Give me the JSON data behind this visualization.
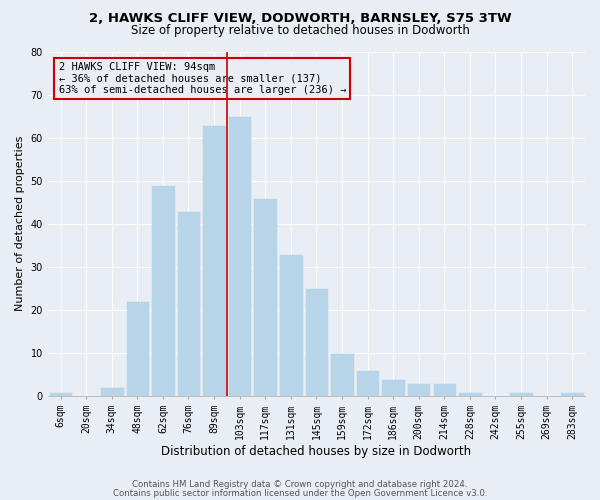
{
  "title_line1": "2, HAWKS CLIFF VIEW, DODWORTH, BARNSLEY, S75 3TW",
  "title_line2": "Size of property relative to detached houses in Dodworth",
  "xlabel": "Distribution of detached houses by size in Dodworth",
  "ylabel": "Number of detached properties",
  "bar_labels": [
    "6sqm",
    "20sqm",
    "34sqm",
    "48sqm",
    "62sqm",
    "76sqm",
    "89sqm",
    "103sqm",
    "117sqm",
    "131sqm",
    "145sqm",
    "159sqm",
    "172sqm",
    "186sqm",
    "200sqm",
    "214sqm",
    "228sqm",
    "242sqm",
    "255sqm",
    "269sqm",
    "283sqm"
  ],
  "bar_values": [
    1,
    0,
    2,
    22,
    49,
    43,
    63,
    65,
    46,
    33,
    25,
    10,
    6,
    4,
    3,
    3,
    1,
    0,
    1,
    0,
    1
  ],
  "bar_color": "#b8d4e8",
  "vline_between_idx": 6,
  "vline_color": "#cc0000",
  "ylim": [
    0,
    80
  ],
  "yticks": [
    0,
    10,
    20,
    30,
    40,
    50,
    60,
    70,
    80
  ],
  "background_color": "#e8eef4",
  "grid_color": "#ffffff",
  "annotation_text": "2 HAWKS CLIFF VIEW: 94sqm\n← 36% of detached houses are smaller (137)\n63% of semi-detached houses are larger (236) →",
  "annotation_box_edge": "#cc0000",
  "annotation_box_face": "#e8eef4",
  "footer_line1": "Contains HM Land Registry data © Crown copyright and database right 2024.",
  "footer_line2": "Contains public sector information licensed under the Open Government Licence v3.0.",
  "title1_fontsize": 9.5,
  "title2_fontsize": 8.5,
  "xlabel_fontsize": 8.5,
  "ylabel_fontsize": 8.0,
  "tick_fontsize": 7.0,
  "ann_fontsize": 7.5,
  "footer_fontsize": 6.2
}
